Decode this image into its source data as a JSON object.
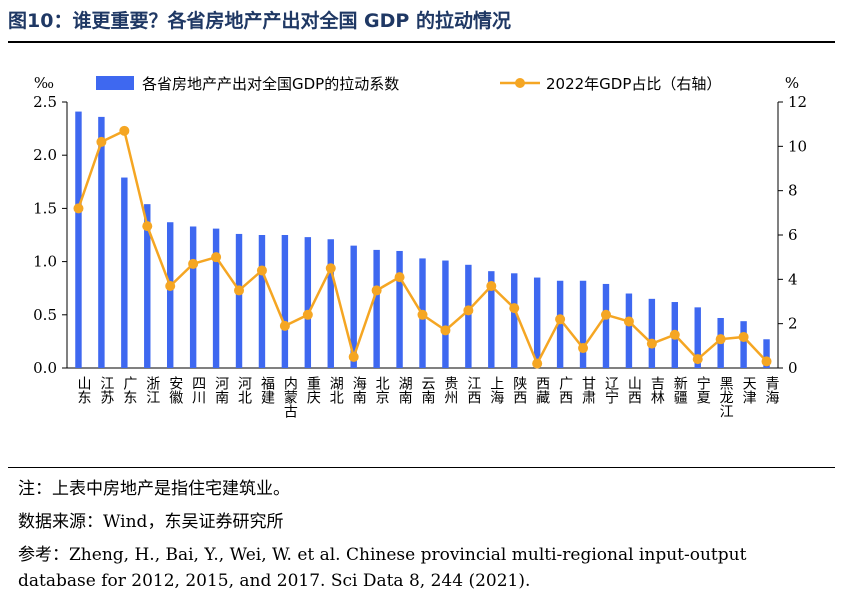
{
  "header": {
    "title": "图10：谁更重要？各省房地产产出对全国 GDP 的拉动情况"
  },
  "chart_data": {
    "type": "bar",
    "categories": [
      "山东",
      "江苏",
      "广东",
      "浙江",
      "安徽",
      "四川",
      "河南",
      "河北",
      "福建",
      "内蒙古",
      "重庆",
      "湖北",
      "海南",
      "北京",
      "湖南",
      "云南",
      "贵州",
      "江西",
      "上海",
      "陕西",
      "西藏",
      "广西",
      "甘肃",
      "辽宁",
      "山西",
      "吉林",
      "新疆",
      "宁夏",
      "黑龙江",
      "天津",
      "青海"
    ],
    "series": [
      {
        "name": "各省房地产产出对全国GDP的拉动系数",
        "type": "bar",
        "axis": "left",
        "color": "#3e68f0",
        "values": [
          2.41,
          2.36,
          1.79,
          1.54,
          1.37,
          1.33,
          1.31,
          1.26,
          1.25,
          1.25,
          1.23,
          1.21,
          1.15,
          1.11,
          1.1,
          1.03,
          1.01,
          0.97,
          0.91,
          0.89,
          0.85,
          0.82,
          0.82,
          0.79,
          0.7,
          0.65,
          0.62,
          0.57,
          0.47,
          0.44,
          0.27
        ]
      },
      {
        "name": "2022年GDP占比（右轴）",
        "type": "line",
        "axis": "right",
        "color": "#f5a623",
        "values": [
          7.2,
          10.2,
          10.7,
          6.4,
          3.7,
          4.7,
          5.0,
          3.5,
          4.4,
          1.9,
          2.4,
          4.5,
          0.5,
          3.5,
          4.1,
          2.4,
          1.7,
          2.6,
          3.7,
          2.7,
          0.2,
          2.2,
          0.9,
          2.4,
          2.1,
          1.1,
          1.5,
          0.4,
          1.3,
          1.4,
          0.3
        ]
      }
    ],
    "y_left": {
      "unit": "‰",
      "ylim": [
        0,
        2.5
      ],
      "ticks": [
        "0.0",
        "0.5",
        "1.0",
        "1.5",
        "2.0",
        "2.5"
      ]
    },
    "y_right": {
      "unit": "%",
      "ylim": [
        0,
        12
      ],
      "ticks": [
        "0",
        "2",
        "4",
        "6",
        "8",
        "10",
        "12"
      ]
    },
    "legend_placement": "top",
    "grid": false
  },
  "footnotes": {
    "note": "注：上表中房地产是指住宅建筑业。",
    "source": "数据来源：Wind，东吴证券研究所",
    "reference_1": "参考：Zheng, H., Bai, Y., Wei, W. et al. Chinese provincial multi-regional input-output",
    "reference_2": "database for 2012, 2015, and 2017. Sci Data 8, 244 (2021)."
  }
}
